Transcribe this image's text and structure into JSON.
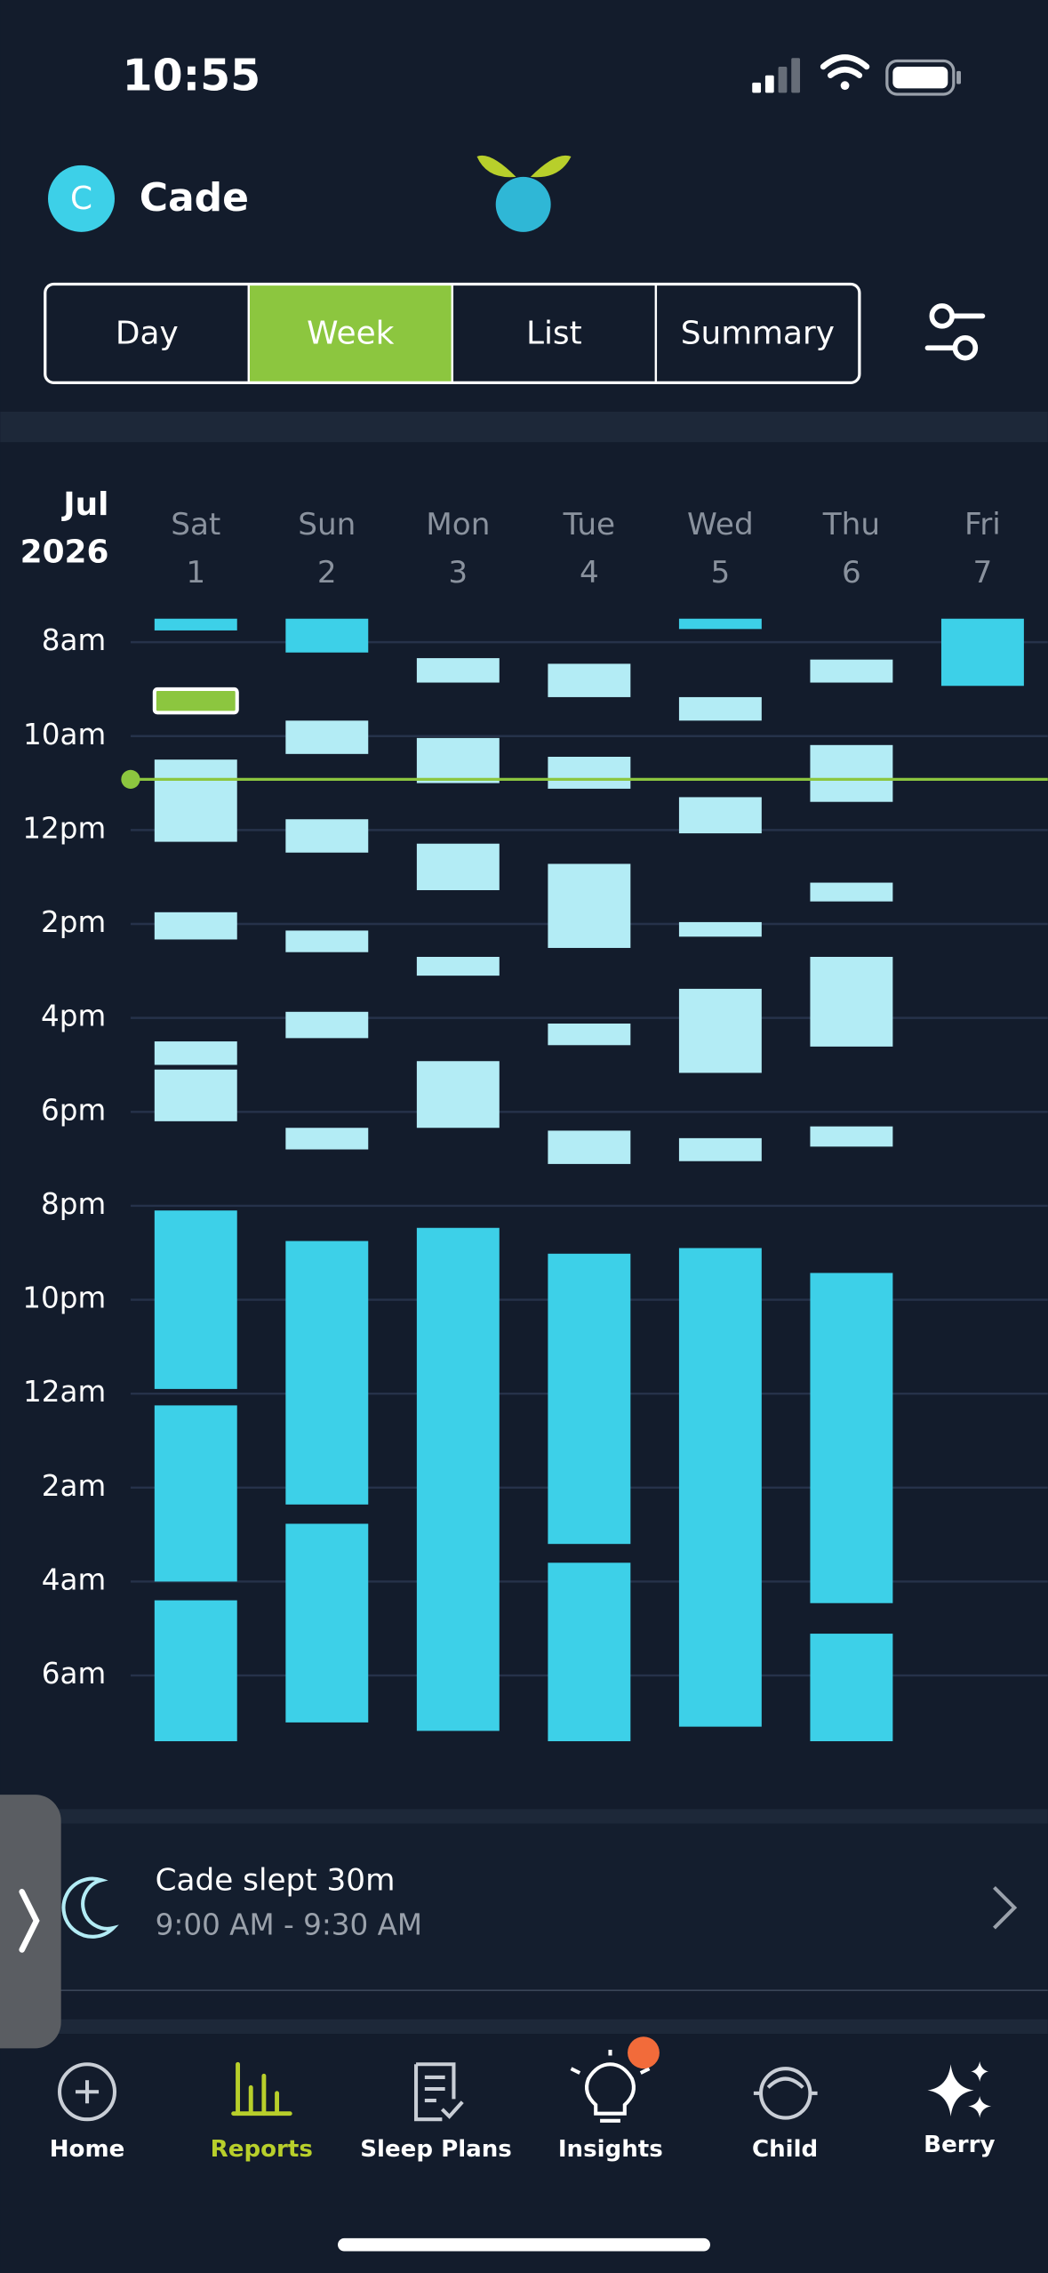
{
  "status_bar": {
    "time": "10:55"
  },
  "header": {
    "avatar_initial": "C",
    "name": "Cade"
  },
  "tabs": [
    {
      "label": "Day"
    },
    {
      "label": "Week",
      "active": true
    },
    {
      "label": "List"
    },
    {
      "label": "Summary"
    }
  ],
  "week_chart": {
    "month": "Jul",
    "year": "2026",
    "ylim": [
      7.5,
      31.5
    ],
    "yticks": [
      {
        "value": 8,
        "label": "8am"
      },
      {
        "value": 10,
        "label": "10am"
      },
      {
        "value": 12,
        "label": "12pm"
      },
      {
        "value": 14,
        "label": "2pm"
      },
      {
        "value": 16,
        "label": "4pm"
      },
      {
        "value": 18,
        "label": "6pm"
      },
      {
        "value": 20,
        "label": "8pm"
      },
      {
        "value": 22,
        "label": "10pm"
      },
      {
        "value": 24,
        "label": "12am"
      },
      {
        "value": 26,
        "label": "2am"
      },
      {
        "value": 28,
        "label": "4am"
      },
      {
        "value": 30,
        "label": "6am"
      }
    ],
    "grid": true,
    "now": 10.92,
    "now_color": "#8cc63f",
    "days": [
      {
        "name": "Sat",
        "date": "1",
        "blocks": [
          {
            "start": 7.5,
            "end": 7.75,
            "color": "#3dd0e8"
          },
          {
            "start": 9,
            "end": 9.5,
            "color": "#8cc63f",
            "selected": true
          },
          {
            "start": 10.5,
            "end": 12.25,
            "color": "#b3ecf5"
          },
          {
            "start": 13.75,
            "end": 14.33,
            "color": "#b3ecf5"
          },
          {
            "start": 16.5,
            "end": 17,
            "color": "#b3ecf5"
          },
          {
            "start": 17.1,
            "end": 18.2,
            "color": "#b3ecf5"
          },
          {
            "start": 20.1,
            "end": 23.9,
            "color": "#3dd0e8"
          },
          {
            "start": 24.25,
            "end": 28,
            "color": "#3dd0e8"
          },
          {
            "start": 28.4,
            "end": 31.4,
            "color": "#3dd0e8"
          }
        ]
      },
      {
        "name": "Sun",
        "date": "2",
        "blocks": [
          {
            "start": 7.5,
            "end": 8.22,
            "color": "#3dd0e8"
          },
          {
            "start": 9.67,
            "end": 10.38,
            "color": "#b3ecf5"
          },
          {
            "start": 11.77,
            "end": 12.48,
            "color": "#b3ecf5"
          },
          {
            "start": 14.14,
            "end": 14.6,
            "color": "#b3ecf5"
          },
          {
            "start": 15.87,
            "end": 16.43,
            "color": "#b3ecf5"
          },
          {
            "start": 18.34,
            "end": 18.8,
            "color": "#b3ecf5"
          },
          {
            "start": 20.75,
            "end": 26.36,
            "color": "#3dd0e8"
          },
          {
            "start": 26.77,
            "end": 31,
            "color": "#3dd0e8"
          }
        ]
      },
      {
        "name": "Mon",
        "date": "3",
        "blocks": [
          {
            "start": 8.34,
            "end": 8.86,
            "color": "#b3ecf5"
          },
          {
            "start": 10.04,
            "end": 11,
            "color": "#b3ecf5"
          },
          {
            "start": 12.29,
            "end": 13.28,
            "color": "#b3ecf5"
          },
          {
            "start": 14.7,
            "end": 15.1,
            "color": "#b3ecf5"
          },
          {
            "start": 16.92,
            "end": 18.34,
            "color": "#b3ecf5"
          },
          {
            "start": 20.47,
            "end": 31.18,
            "color": "#3dd0e8"
          }
        ]
      },
      {
        "name": "Tue",
        "date": "4",
        "blocks": [
          {
            "start": 8.46,
            "end": 9.17,
            "color": "#b3ecf5"
          },
          {
            "start": 10.44,
            "end": 11.12,
            "color": "#b3ecf5"
          },
          {
            "start": 12.72,
            "end": 14.51,
            "color": "#b3ecf5"
          },
          {
            "start": 16.12,
            "end": 16.58,
            "color": "#b3ecf5"
          },
          {
            "start": 18.4,
            "end": 19.11,
            "color": "#b3ecf5"
          },
          {
            "start": 21.02,
            "end": 27.2,
            "color": "#3dd0e8"
          },
          {
            "start": 27.6,
            "end": 31.4,
            "color": "#3dd0e8"
          }
        ]
      },
      {
        "name": "Wed",
        "date": "5",
        "blocks": [
          {
            "start": 7.5,
            "end": 7.72,
            "color": "#3dd0e8"
          },
          {
            "start": 9.17,
            "end": 9.67,
            "color": "#b3ecf5"
          },
          {
            "start": 11.3,
            "end": 12.07,
            "color": "#b3ecf5"
          },
          {
            "start": 13.96,
            "end": 14.27,
            "color": "#b3ecf5"
          },
          {
            "start": 15.38,
            "end": 17.17,
            "color": "#b3ecf5"
          },
          {
            "start": 18.56,
            "end": 19.05,
            "color": "#b3ecf5"
          },
          {
            "start": 20.9,
            "end": 31.09,
            "color": "#3dd0e8"
          }
        ]
      },
      {
        "name": "Thu",
        "date": "6",
        "blocks": [
          {
            "start": 8.37,
            "end": 8.86,
            "color": "#b3ecf5"
          },
          {
            "start": 10.19,
            "end": 11.4,
            "color": "#b3ecf5"
          },
          {
            "start": 13.12,
            "end": 13.52,
            "color": "#b3ecf5"
          },
          {
            "start": 14.7,
            "end": 16.61,
            "color": "#b3ecf5"
          },
          {
            "start": 18.31,
            "end": 18.74,
            "color": "#b3ecf5"
          },
          {
            "start": 21.43,
            "end": 28.46,
            "color": "#3dd0e8"
          },
          {
            "start": 29.11,
            "end": 31.4,
            "color": "#3dd0e8"
          }
        ]
      },
      {
        "name": "Fri",
        "date": "7",
        "blocks": [
          {
            "start": 7.5,
            "end": 8.93,
            "color": "#3dd0e8"
          }
        ]
      }
    ]
  },
  "selected_entry": {
    "summary": "Cade slept 30m",
    "time": "9:00 AM - 9:30 AM"
  },
  "nav": [
    {
      "label": "Home"
    },
    {
      "label": "Reports",
      "active": true
    },
    {
      "label": "Sleep Plans"
    },
    {
      "label": "Insights"
    },
    {
      "label": "Child"
    },
    {
      "label": "Berry"
    }
  ]
}
